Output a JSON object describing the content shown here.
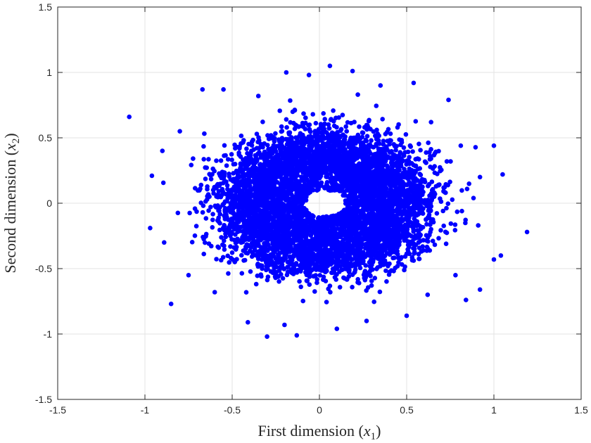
{
  "chart_data": {
    "type": "scatter",
    "title": "",
    "xlabel": "First dimension",
    "xlabel_math": "x",
    "xlabel_sub": "1",
    "ylabel": "Second dimension",
    "ylabel_math": "x",
    "ylabel_sub": "2",
    "xlim": [
      -1.5,
      1.5
    ],
    "ylim": [
      -1.5,
      1.5
    ],
    "xticks": [
      -1.5,
      -1,
      -0.5,
      0,
      0.5,
      1,
      1.5
    ],
    "xtick_labels": [
      "-1.5",
      "-1",
      "-0.5",
      "0",
      "0.5",
      "1",
      "1.5"
    ],
    "yticks": [
      -1.5,
      -1,
      -0.5,
      0,
      0.5,
      1,
      1.5
    ],
    "ytick_labels": [
      "-1.5",
      "-1",
      "-0.5",
      "0",
      "0.5",
      "1",
      "1.5"
    ],
    "grid": true,
    "marker_color": "#0000ff",
    "series": [
      {
        "name": "",
        "distribution": "annulus centered near (0,0), inner hole radius about 0.1 around (0.03,0.0), dense core within about 0.6, sparse outliers to about 1.2",
        "points": [
          [
            -1.09,
            0.66
          ],
          [
            1.19,
            -0.22
          ],
          [
            0.06,
            1.05
          ],
          [
            -0.19,
            1.0
          ],
          [
            0.19,
            1.01
          ],
          [
            -0.3,
            -1.02
          ],
          [
            -0.13,
            -1.01
          ],
          [
            -0.85,
            -0.77
          ],
          [
            1.0,
            0.44
          ],
          [
            1.05,
            0.22
          ],
          [
            0.84,
            -0.74
          ],
          [
            0.92,
            -0.66
          ],
          [
            -0.96,
            0.21
          ],
          [
            -0.97,
            -0.19
          ],
          [
            1.04,
            -0.4
          ],
          [
            1.0,
            -0.43
          ],
          [
            -0.67,
            0.87
          ],
          [
            -0.55,
            0.87
          ],
          [
            0.54,
            0.92
          ],
          [
            0.74,
            0.79
          ],
          [
            -0.06,
            0.98
          ],
          [
            0.35,
            0.9
          ],
          [
            -0.41,
            -0.91
          ],
          [
            0.27,
            -0.9
          ],
          [
            0.5,
            -0.86
          ],
          [
            0.92,
            0.2
          ],
          [
            0.91,
            -0.17
          ],
          [
            -0.9,
            0.4
          ],
          [
            -0.89,
            -0.3
          ],
          [
            0.81,
            0.44
          ],
          [
            -0.8,
            0.55
          ],
          [
            -0.75,
            -0.55
          ],
          [
            0.78,
            -0.55
          ],
          [
            -0.6,
            -0.68
          ],
          [
            0.62,
            -0.7
          ],
          [
            -0.2,
            -0.93
          ],
          [
            0.1,
            -0.96
          ],
          [
            0.64,
            0.62
          ],
          [
            -0.35,
            0.82
          ],
          [
            0.22,
            0.83
          ]
        ]
      }
    ]
  }
}
